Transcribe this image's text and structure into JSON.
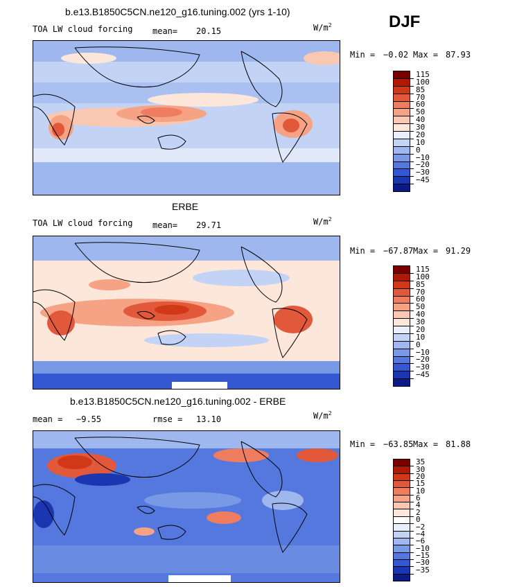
{
  "season": "DJF",
  "panels": [
    {
      "title": "b.e13.B1850C5CN.ne120_g16.tuning.002 (yrs 1-10)",
      "left_text": "TOA LW cloud forcing",
      "stat1_label": "mean=",
      "stat1_value": "20.15",
      "stat2_label": "",
      "stat2_value": "",
      "units": "W/m",
      "units_exp": "2",
      "min_label": "Min =",
      "min_value": "−0.02",
      "max_label": "Max =",
      "max_value": "87.93",
      "colorbar": {
        "labels": [
          "115",
          "100",
          "85",
          "70",
          "60",
          "50",
          "40",
          "30",
          "20",
          "10",
          "0",
          "−10",
          "−20",
          "−30",
          "−45"
        ],
        "colors": [
          "#7a0000",
          "#b01a05",
          "#d03818",
          "#e2583a",
          "#ee7d5f",
          "#f5a285",
          "#fac8b0",
          "#fde6da",
          "#e8eefb",
          "#c2d3f5",
          "#9eb8ef",
          "#7899e6",
          "#5478dd",
          "#3358d2",
          "#1a36b0",
          "#0a1a86"
        ]
      }
    },
    {
      "title": "ERBE",
      "left_text": "TOA LW cloud forcing",
      "stat1_label": "mean=",
      "stat1_value": "29.71",
      "stat2_label": "",
      "stat2_value": "",
      "units": "W/m",
      "units_exp": "2",
      "min_label": "Min =",
      "min_value": "−67.87",
      "max_label": "Max =",
      "max_value": "91.29",
      "colorbar": {
        "labels": [
          "115",
          "100",
          "85",
          "70",
          "60",
          "50",
          "40",
          "30",
          "20",
          "10",
          "0",
          "−10",
          "−20",
          "−30",
          "−45"
        ],
        "colors": [
          "#7a0000",
          "#b01a05",
          "#d03818",
          "#e2583a",
          "#ee7d5f",
          "#f5a285",
          "#fac8b0",
          "#fde6da",
          "#e8eefb",
          "#c2d3f5",
          "#9eb8ef",
          "#7899e6",
          "#5478dd",
          "#3358d2",
          "#1a36b0",
          "#0a1a86"
        ]
      }
    },
    {
      "title": "b.e13.B1850C5CN.ne120_g16.tuning.002 - ERBE",
      "left_text": "",
      "stat1_label": "mean =",
      "stat1_value": "−9.55",
      "stat2_label": "rmse =",
      "stat2_value": "13.10",
      "units": "W/m",
      "units_exp": "2",
      "min_label": "Min =",
      "min_value": "−63.85",
      "max_label": "Max =",
      "max_value": "81.88",
      "colorbar": {
        "labels": [
          "35",
          "30",
          "20",
          "15",
          "10",
          "6",
          "4",
          "2",
          "0",
          "−2",
          "−4",
          "−6",
          "−10",
          "−15",
          "−30",
          "−35"
        ],
        "colors": [
          "#7a0000",
          "#b01a05",
          "#d03818",
          "#e2583a",
          "#ee7d5f",
          "#f5a285",
          "#fac8b0",
          "#fde6da",
          "#ffffff",
          "#e8eefb",
          "#c2d3f5",
          "#9eb8ef",
          "#7899e6",
          "#5478dd",
          "#3358d2",
          "#1a36b0",
          "#0a1a86"
        ]
      }
    }
  ]
}
